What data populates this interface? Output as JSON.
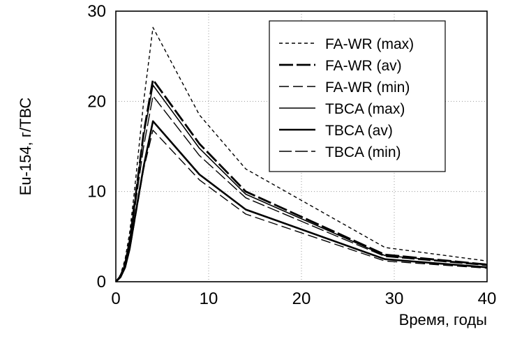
{
  "chart_data": {
    "type": "line",
    "title": "",
    "xlabel": "Время, годы",
    "ylabel": "Eu-154, г/ТВС",
    "xlim": [
      0,
      40
    ],
    "ylim": [
      0,
      30
    ],
    "x_ticks": [
      "0",
      "10",
      "20",
      "30",
      "40"
    ],
    "y_ticks": [
      "0",
      "10",
      "20",
      "30"
    ],
    "grid": true,
    "legend_position": "top-right",
    "series": [
      {
        "name": "FA-WR (max)",
        "style": "short-dash",
        "x": [
          0,
          0.5,
          1,
          1.5,
          2,
          3,
          4,
          9,
          14,
          29,
          40
        ],
        "y": [
          0,
          0.8,
          2.5,
          5.5,
          10,
          20,
          28.2,
          18.5,
          12.5,
          3.8,
          2.3
        ]
      },
      {
        "name": "FA-WR (av)",
        "style": "long-dash",
        "x": [
          0,
          0.5,
          1,
          1.5,
          2,
          3,
          4,
          9,
          14,
          29,
          40
        ],
        "y": [
          0,
          0.6,
          2,
          4.5,
          8.5,
          16.5,
          22.4,
          15.3,
          10,
          3,
          1.9
        ]
      },
      {
        "name": "FA-WR (min)",
        "style": "medium-dash",
        "x": [
          0,
          0.5,
          1,
          1.5,
          2,
          3,
          4,
          9,
          14,
          29,
          40
        ],
        "y": [
          0,
          0.5,
          1.5,
          3.5,
          6.5,
          12.5,
          16.8,
          11.3,
          7.5,
          2.3,
          1.5
        ]
      },
      {
        "name": "TBCA (max)",
        "style": "solid-thin",
        "x": [
          0,
          0.5,
          1,
          1.5,
          2,
          3,
          4,
          9,
          14,
          29,
          40
        ],
        "y": [
          0,
          0.6,
          2,
          4.6,
          8.6,
          16.2,
          21.8,
          14.8,
          9.7,
          2.9,
          1.9
        ]
      },
      {
        "name": "TBCA (av)",
        "style": "solid-thick",
        "x": [
          0,
          0.5,
          1,
          1.5,
          2,
          3,
          4,
          9,
          14,
          29,
          40
        ],
        "y": [
          0,
          0.5,
          1.6,
          3.7,
          6.8,
          12.8,
          17.8,
          11.9,
          8,
          2.5,
          1.6
        ]
      },
      {
        "name": "TBCA (min)",
        "style": "long-dash-thin",
        "x": [
          0,
          0.5,
          1,
          1.5,
          2,
          3,
          4,
          9,
          14,
          29,
          40
        ],
        "y": [
          0,
          0.5,
          1.8,
          4.2,
          7.8,
          15,
          20.6,
          14,
          9.3,
          2.8,
          1.8
        ]
      }
    ]
  }
}
